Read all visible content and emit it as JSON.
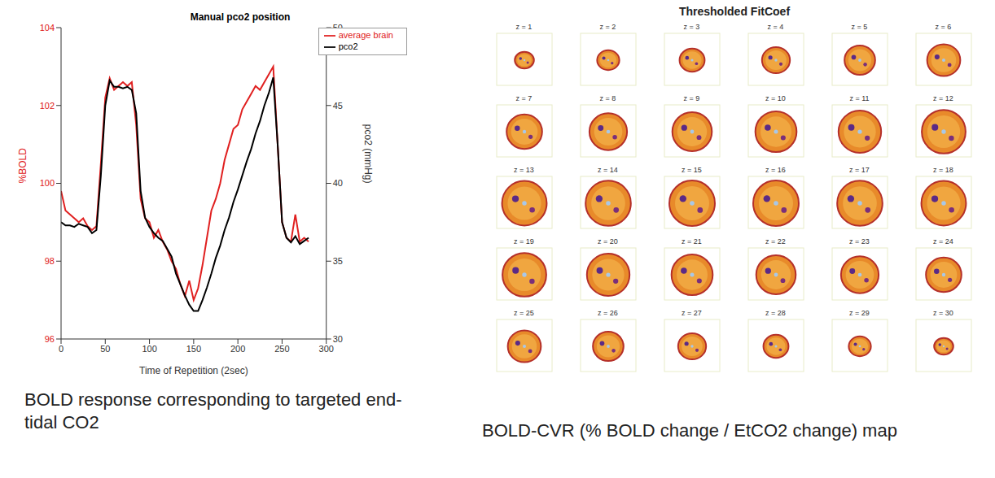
{
  "chart_data": {
    "type": "line",
    "title": "Manual pco2 position",
    "xlabel": "Time of Repetition (2sec)",
    "ylabel": "%BOLD",
    "y2label": "pco2 (mmHg)",
    "caption": "BOLD response corresponding to targeted end-tidal CO2",
    "x": [
      0,
      5,
      10,
      15,
      20,
      25,
      30,
      35,
      40,
      45,
      50,
      55,
      60,
      65,
      70,
      75,
      80,
      85,
      90,
      95,
      100,
      105,
      110,
      115,
      120,
      125,
      130,
      135,
      140,
      145,
      150,
      155,
      160,
      165,
      170,
      175,
      180,
      185,
      190,
      195,
      200,
      205,
      210,
      215,
      220,
      225,
      230,
      235,
      240,
      245,
      250,
      255,
      260,
      265,
      270,
      275,
      280
    ],
    "series": [
      {
        "name": "average brain",
        "color": "#e02020",
        "values": [
          99.8,
          99.3,
          99.2,
          99.1,
          99.0,
          99.1,
          98.9,
          98.8,
          98.9,
          100.5,
          102.2,
          102.7,
          102.4,
          102.5,
          102.6,
          102.5,
          102.6,
          101.5,
          99.6,
          99.1,
          99.0,
          98.6,
          98.8,
          98.5,
          98.3,
          98.0,
          97.8,
          97.4,
          97.1,
          97.5,
          97.0,
          97.3,
          97.9,
          98.6,
          99.3,
          99.6,
          100.0,
          100.6,
          101.0,
          101.4,
          101.5,
          101.9,
          102.1,
          102.3,
          102.5,
          102.4,
          102.6,
          102.8,
          103.0,
          101.0,
          99.0,
          98.6,
          98.5,
          99.2,
          98.5,
          98.6,
          98.5
        ]
      },
      {
        "name": "pco2",
        "color": "#000000",
        "axis": "y2",
        "values": [
          37.5,
          37.3,
          37.3,
          37.2,
          37.4,
          37.3,
          37.2,
          36.8,
          37.0,
          40.5,
          45.0,
          46.6,
          46.2,
          46.2,
          46.1,
          46.2,
          46.0,
          44.5,
          39.5,
          37.8,
          37.2,
          36.8,
          36.5,
          36.3,
          35.8,
          35.3,
          34.2,
          33.5,
          32.8,
          32.2,
          31.8,
          31.8,
          32.5,
          33.3,
          34.2,
          35.2,
          36.0,
          37.0,
          37.8,
          38.8,
          39.6,
          40.5,
          41.4,
          42.2,
          43.2,
          44.0,
          45.0,
          45.8,
          46.8,
          42.5,
          37.5,
          36.5,
          36.2,
          36.6,
          36.1,
          36.3,
          36.5
        ]
      }
    ],
    "xlim": [
      0,
      300
    ],
    "xticks": [
      0,
      50,
      100,
      150,
      200,
      250,
      300
    ],
    "ylim": [
      96,
      104
    ],
    "yticks": [
      96,
      98,
      100,
      102,
      104
    ],
    "y2lim": [
      30,
      50
    ],
    "y2ticks": [
      30,
      35,
      40,
      45,
      50
    ],
    "legend": "upper right",
    "grid": false
  },
  "map_figure": {
    "title": "Thresholded FitCoef",
    "slices": [
      "z = 1",
      "z = 2",
      "z = 3",
      "z = 4",
      "z = 5",
      "z = 6",
      "z = 7",
      "z = 8",
      "z = 9",
      "z = 10",
      "z = 11",
      "z = 12",
      "z = 13",
      "z = 14",
      "z = 15",
      "z = 16",
      "z = 17",
      "z = 18",
      "z = 19",
      "z = 20",
      "z = 21",
      "z = 22",
      "z = 23",
      "z = 24",
      "z = 25",
      "z = 26",
      "z = 27",
      "z = 28",
      "z = 29",
      "z = 30"
    ],
    "caption": "BOLD-CVR (% BOLD change / EtCO2 change) map"
  }
}
